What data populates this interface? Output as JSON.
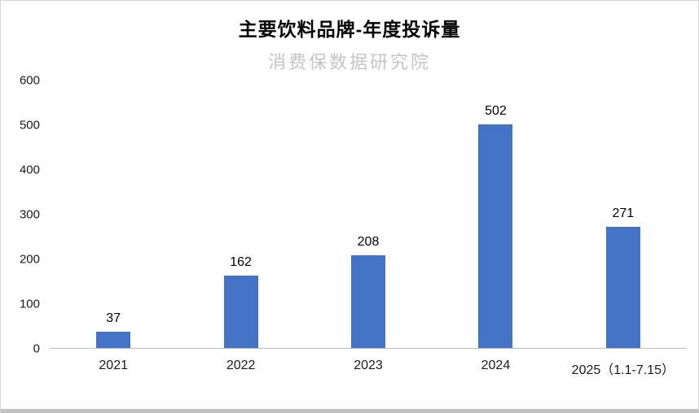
{
  "title": "主要饮料品牌-年度投诉量",
  "watermark": "消费保数据研究院",
  "chart_data": {
    "type": "bar",
    "title": "主要饮料品牌-年度投诉量",
    "categories": [
      "2021",
      "2022",
      "2023",
      "2024",
      "2025（1.1-7.15）"
    ],
    "values": [
      37,
      162,
      208,
      502,
      271
    ],
    "xlabel": "",
    "ylabel": "",
    "ylim": [
      0,
      600
    ],
    "yticks": [
      0,
      100,
      200,
      300,
      400,
      500,
      600
    ],
    "bar_color": "#4472c4",
    "grid": false,
    "legend": false,
    "watermark": "消费保数据研究院"
  }
}
